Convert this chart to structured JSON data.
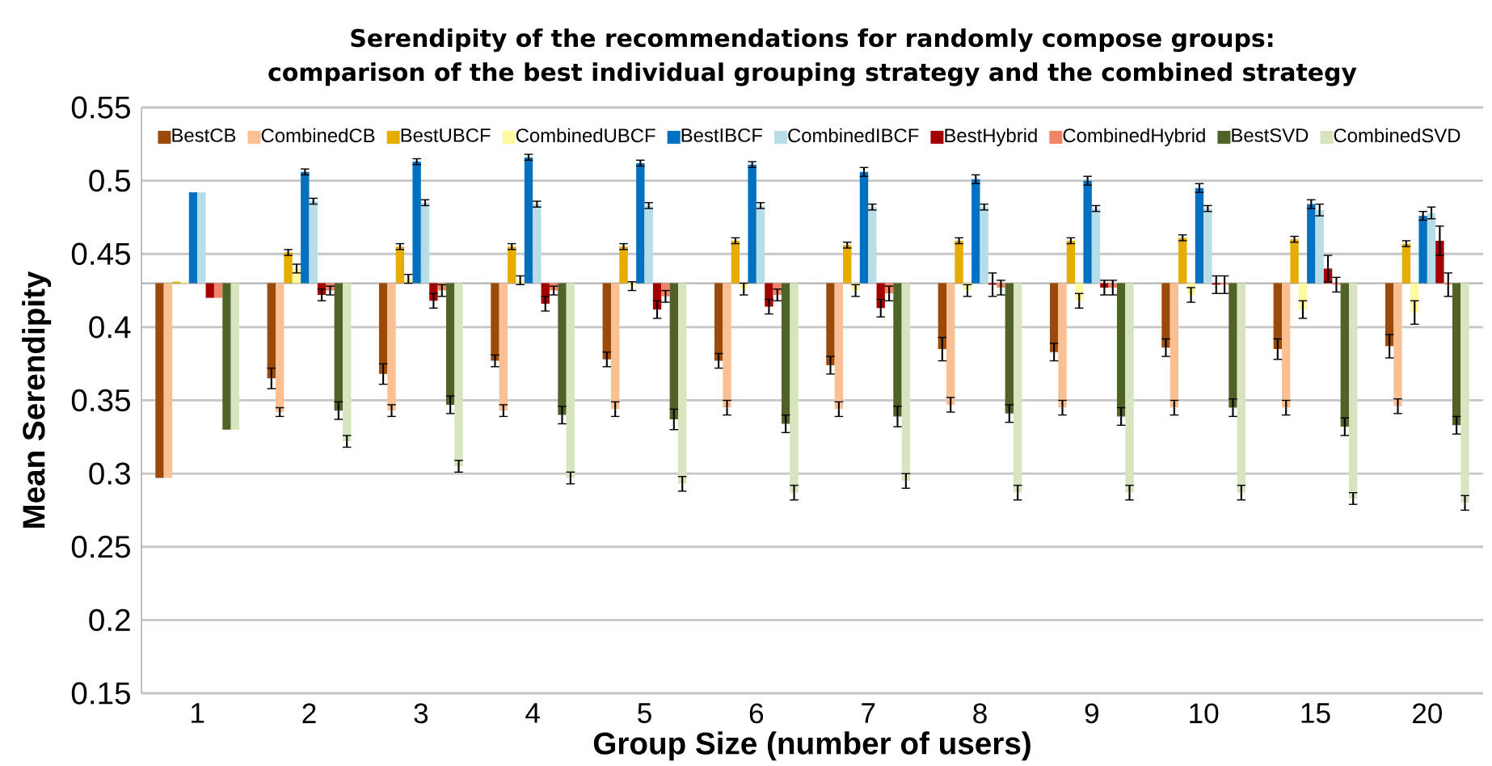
{
  "chart_data": {
    "type": "bar",
    "title": "Serendipity of the recommendations for randomly compose groups:",
    "subtitle": "comparison of the best individual grouping strategy and the combined strategy",
    "xlabel": "Group Size (number of users)",
    "ylabel": "Mean Serendipity",
    "categories": [
      "1",
      "2",
      "3",
      "4",
      "5",
      "6",
      "7",
      "8",
      "9",
      "10",
      "15",
      "20"
    ],
    "ylim": [
      0.15,
      0.55
    ],
    "yticks": [
      0.15,
      0.2,
      0.25,
      0.3,
      0.35,
      0.4,
      0.45,
      0.5,
      0.55
    ],
    "grid": "y",
    "legend": "top",
    "ref_lines": [
      {
        "axis": "y",
        "value": 0.43,
        "color": "#a6a6a6"
      }
    ],
    "series": [
      {
        "name": "BestCB",
        "color": "#9c4a0a",
        "base": [
          0.43,
          0.43,
          0.43,
          0.43,
          0.43,
          0.43,
          0.43,
          0.43,
          0.43,
          0.43,
          0.43,
          0.43
        ],
        "values": [
          -0.133,
          -0.065,
          -0.062,
          -0.053,
          -0.052,
          -0.053,
          -0.056,
          -0.045,
          -0.047,
          -0.044,
          -0.045,
          -0.043
        ],
        "errors": [
          null,
          0.007,
          0.007,
          0.004,
          0.005,
          0.005,
          0.006,
          0.008,
          0.006,
          0.006,
          0.007,
          0.008
        ]
      },
      {
        "name": "CombinedCB",
        "color": "#fbbf94",
        "base": [
          0.43,
          0.43,
          0.43,
          0.43,
          0.43,
          0.43,
          0.43,
          0.43,
          0.43,
          0.43,
          0.43,
          0.43
        ],
        "values": [
          -0.133,
          -0.088,
          -0.087,
          -0.087,
          -0.086,
          -0.085,
          -0.086,
          -0.083,
          -0.085,
          -0.085,
          -0.085,
          -0.084
        ],
        "errors": [
          null,
          0.003,
          0.004,
          0.004,
          0.005,
          0.005,
          0.005,
          0.005,
          0.005,
          0.005,
          0.005,
          0.005
        ]
      },
      {
        "name": "BestUBCF",
        "color": "#e6ac00",
        "base": [
          0.43,
          0.43,
          0.43,
          0.43,
          0.43,
          0.43,
          0.43,
          0.43,
          0.43,
          0.43,
          0.43,
          0.43
        ],
        "values": [
          0.001,
          0.021,
          0.025,
          0.025,
          0.025,
          0.029,
          0.026,
          0.029,
          0.029,
          0.031,
          0.03,
          0.027
        ],
        "errors": [
          null,
          0.002,
          0.002,
          0.002,
          0.002,
          0.002,
          0.002,
          0.002,
          0.002,
          0.002,
          0.002,
          0.002
        ]
      },
      {
        "name": "CombinedUBCF",
        "color": "#fff9a0",
        "base": [
          0.43,
          0.43,
          0.43,
          0.43,
          0.43,
          0.43,
          0.43,
          0.43,
          0.43,
          0.43,
          0.43,
          0.43
        ],
        "values": [
          0.001,
          0.01,
          0.003,
          0.002,
          -0.002,
          -0.004,
          -0.005,
          -0.005,
          -0.012,
          -0.008,
          -0.018,
          -0.02
        ],
        "errors": [
          null,
          0.003,
          0.003,
          0.003,
          0.003,
          0.004,
          0.004,
          0.004,
          0.005,
          0.005,
          0.006,
          0.008
        ]
      },
      {
        "name": "BestIBCF",
        "color": "#0070c0",
        "base": [
          0.43,
          0.43,
          0.43,
          0.43,
          0.43,
          0.43,
          0.43,
          0.43,
          0.43,
          0.43,
          0.43,
          0.43
        ],
        "values": [
          0.062,
          0.076,
          0.083,
          0.086,
          0.082,
          0.081,
          0.076,
          0.071,
          0.07,
          0.065,
          0.054,
          0.046
        ],
        "errors": [
          null,
          0.002,
          0.002,
          0.002,
          0.002,
          0.002,
          0.003,
          0.003,
          0.003,
          0.003,
          0.003,
          0.003
        ]
      },
      {
        "name": "CombinedIBCF",
        "color": "#b7dde8",
        "base": [
          0.43,
          0.43,
          0.43,
          0.43,
          0.43,
          0.43,
          0.43,
          0.43,
          0.43,
          0.43,
          0.43,
          0.43
        ],
        "values": [
          0.062,
          0.056,
          0.055,
          0.054,
          0.053,
          0.053,
          0.052,
          0.052,
          0.051,
          0.051,
          0.05,
          0.048
        ],
        "errors": [
          null,
          0.002,
          0.002,
          0.002,
          0.002,
          0.002,
          0.002,
          0.002,
          0.002,
          0.002,
          0.004,
          0.004
        ]
      },
      {
        "name": "BestHybrid",
        "color": "#a50000",
        "base": [
          0.43,
          0.43,
          0.43,
          0.43,
          0.43,
          0.43,
          0.43,
          0.43,
          0.43,
          0.43,
          0.43,
          0.43
        ],
        "values": [
          -0.01,
          -0.008,
          -0.012,
          -0.014,
          -0.018,
          -0.016,
          -0.017,
          -0.001,
          -0.003,
          -0.001,
          0.01,
          0.029
        ],
        "errors": [
          null,
          0.004,
          0.005,
          0.005,
          0.006,
          0.005,
          0.006,
          0.008,
          0.005,
          0.006,
          0.009,
          0.01
        ]
      },
      {
        "name": "CombinedHybrid",
        "color": "#ef8566",
        "base": [
          0.43,
          0.43,
          0.43,
          0.43,
          0.43,
          0.43,
          0.43,
          0.43,
          0.43,
          0.43,
          0.43,
          0.43
        ],
        "values": [
          -0.01,
          -0.005,
          -0.005,
          -0.005,
          -0.009,
          -0.008,
          -0.007,
          -0.003,
          -0.003,
          -0.001,
          -0.001,
          -0.001
        ],
        "errors": [
          null,
          0.003,
          0.004,
          0.003,
          0.004,
          0.004,
          0.005,
          0.005,
          0.005,
          0.006,
          0.005,
          0.008
        ]
      },
      {
        "name": "BestSVD",
        "color": "#4f6228",
        "base": [
          0.43,
          0.43,
          0.43,
          0.43,
          0.43,
          0.43,
          0.43,
          0.43,
          0.43,
          0.43,
          0.43,
          0.43
        ],
        "values": [
          -0.1,
          -0.087,
          -0.083,
          -0.09,
          -0.093,
          -0.096,
          -0.091,
          -0.089,
          -0.091,
          -0.085,
          -0.098,
          -0.097
        ],
        "errors": [
          null,
          0.006,
          0.006,
          0.006,
          0.007,
          0.006,
          0.007,
          0.006,
          0.006,
          0.006,
          0.006,
          0.006
        ]
      },
      {
        "name": "CombinedSVD",
        "color": "#d7e4bd",
        "base": [
          0.43,
          0.43,
          0.43,
          0.43,
          0.43,
          0.43,
          0.43,
          0.43,
          0.43,
          0.43,
          0.43,
          0.43
        ],
        "values": [
          -0.1,
          -0.108,
          -0.125,
          -0.133,
          -0.137,
          -0.143,
          -0.135,
          -0.143,
          -0.143,
          -0.143,
          -0.147,
          -0.15
        ],
        "errors": [
          null,
          0.004,
          0.004,
          0.004,
          0.005,
          0.005,
          0.005,
          0.005,
          0.005,
          0.005,
          0.004,
          0.005
        ]
      }
    ]
  }
}
